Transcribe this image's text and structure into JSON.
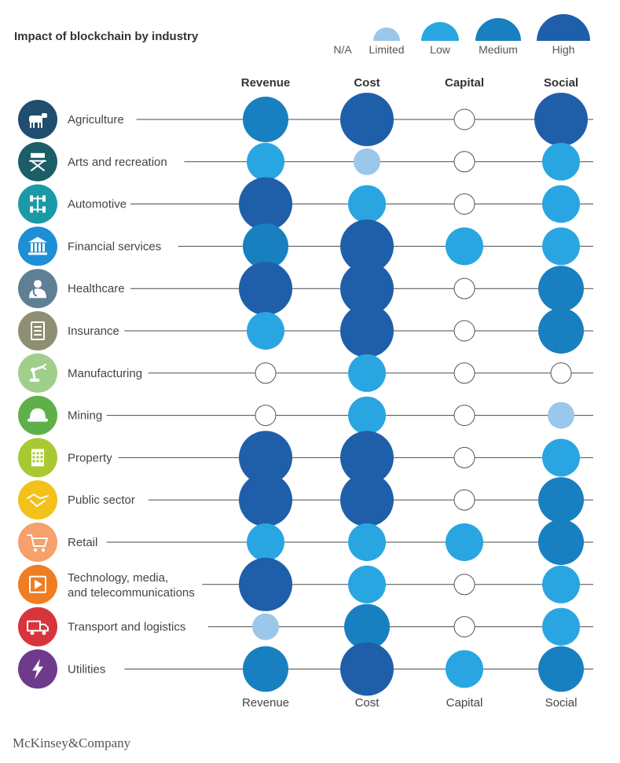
{
  "chart_data": {
    "type": "bubble-matrix",
    "title": "Impact of blockchain by industry",
    "legend": [
      {
        "key": "na",
        "label": "N/A"
      },
      {
        "key": "limited",
        "label": "Limited"
      },
      {
        "key": "low",
        "label": "Low"
      },
      {
        "key": "medium",
        "label": "Medium"
      },
      {
        "key": "high",
        "label": "High"
      }
    ],
    "columns": [
      "Revenue",
      "Cost",
      "Capital",
      "Social"
    ],
    "rows": [
      {
        "industry": "Agriculture",
        "icon": "cow-icon",
        "icon_color": "#1f4e6e",
        "impact": [
          "medium",
          "high",
          "na",
          "high"
        ]
      },
      {
        "industry": "Arts and recreation",
        "icon": "directors-chair-icon",
        "icon_color": "#1b5e67",
        "impact": [
          "low",
          "limited",
          "na",
          "low"
        ]
      },
      {
        "industry": "Automotive",
        "icon": "chassis-icon",
        "icon_color": "#1a9aa6",
        "impact": [
          "high",
          "low",
          "na",
          "low"
        ]
      },
      {
        "industry": "Financial services",
        "icon": "bank-icon",
        "icon_color": "#1d8fd6",
        "impact": [
          "medium",
          "high",
          "low",
          "low"
        ]
      },
      {
        "industry": "Healthcare",
        "icon": "doctor-icon",
        "icon_color": "#5f7f95",
        "impact": [
          "high",
          "high",
          "na",
          "medium"
        ]
      },
      {
        "industry": "Insurance",
        "icon": "document-icon",
        "icon_color": "#8e8e72",
        "impact": [
          "low",
          "high",
          "na",
          "medium"
        ]
      },
      {
        "industry": "Manufacturing",
        "icon": "robot-arm-icon",
        "icon_color": "#9fcf8a",
        "impact": [
          "na",
          "low",
          "na",
          "na"
        ]
      },
      {
        "industry": "Mining",
        "icon": "hard-hat-icon",
        "icon_color": "#5fb04a",
        "impact": [
          "na",
          "low",
          "na",
          "limited"
        ]
      },
      {
        "industry": "Property",
        "icon": "building-icon",
        "icon_color": "#a9c932",
        "impact": [
          "high",
          "high",
          "na",
          "low"
        ]
      },
      {
        "industry": "Public sector",
        "icon": "handshake-icon",
        "icon_color": "#f2c21b",
        "impact": [
          "high",
          "high",
          "na",
          "medium"
        ]
      },
      {
        "industry": "Retail",
        "icon": "shopping-cart-icon",
        "icon_color": "#f6a06b",
        "impact": [
          "low",
          "low",
          "low",
          "medium"
        ]
      },
      {
        "industry": "Technology, media,\nand telecommunications",
        "icon": "video-play-icon",
        "icon_color": "#ee7d23",
        "impact": [
          "high",
          "low",
          "na",
          "low"
        ]
      },
      {
        "industry": "Transport and logistics",
        "icon": "truck-icon",
        "icon_color": "#d8343c",
        "impact": [
          "limited",
          "medium",
          "na",
          "low"
        ]
      },
      {
        "industry": "Utilities",
        "icon": "lightning-icon",
        "icon_color": "#6d3a8c",
        "impact": [
          "medium",
          "high",
          "low",
          "medium"
        ]
      }
    ],
    "colors": {
      "na": "#ffffff",
      "limited": "#9ac7ea",
      "low": "#29a6e2",
      "medium": "#1880c0",
      "high": "#1f5faa",
      "na_stroke": "#555555",
      "line": "#4a4a4a"
    }
  },
  "source": "McKinsey&Company"
}
